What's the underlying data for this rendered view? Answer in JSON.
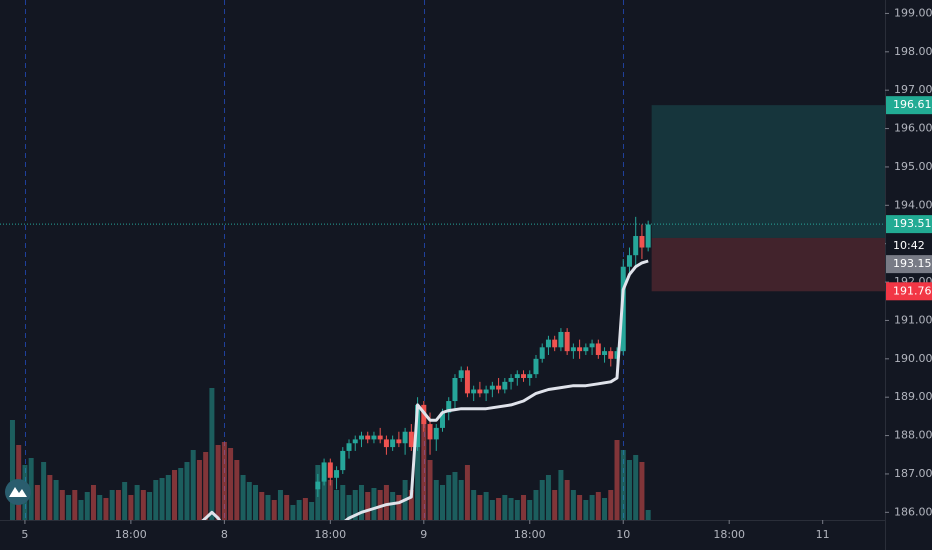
{
  "chart_data": {
    "type": "candlestick",
    "ylim": [
      185.8,
      199.35
    ],
    "yticks": [
      {
        "value": 199,
        "label": "199.00"
      },
      {
        "value": 198,
        "label": "198.00"
      },
      {
        "value": 197,
        "label": "197.00"
      },
      {
        "value": 196,
        "label": "196.00"
      },
      {
        "value": 195,
        "label": "195.00"
      },
      {
        "value": 194,
        "label": "194.00"
      },
      {
        "value": 193,
        "label": "193.00"
      },
      {
        "value": 192,
        "label": "192.00"
      },
      {
        "value": 191,
        "label": "191.00"
      },
      {
        "value": 190,
        "label": "190.00"
      },
      {
        "value": 189,
        "label": "189.00"
      },
      {
        "value": 188,
        "label": "188.00"
      },
      {
        "value": 187,
        "label": "187.00"
      },
      {
        "value": 186,
        "label": "186.00"
      }
    ],
    "xlim": [
      -4,
      138
    ],
    "xticks": [
      {
        "value": 0,
        "label": "5"
      },
      {
        "value": 17,
        "label": "18:00"
      },
      {
        "value": 32,
        "label": "8"
      },
      {
        "value": 49,
        "label": "18:00"
      },
      {
        "value": 64,
        "label": "9"
      },
      {
        "value": 81,
        "label": "18:00"
      },
      {
        "value": 96,
        "label": "10"
      },
      {
        "value": 113,
        "label": "18:00"
      },
      {
        "value": 128,
        "label": "11"
      }
    ],
    "day_lines": [
      0,
      32,
      64,
      96
    ],
    "up_color": "#26a69a",
    "down_color": "#ef5350",
    "candles": {
      "x": [
        47,
        48,
        49,
        50,
        51,
        52,
        53,
        54,
        55,
        56,
        57,
        58,
        59,
        60,
        61,
        62,
        63,
        64,
        65,
        66,
        67,
        68,
        69,
        70,
        71,
        72,
        73,
        74,
        75,
        76,
        77,
        78,
        79,
        80,
        81,
        82,
        83,
        84,
        85,
        86,
        87,
        88,
        89,
        90,
        91,
        92,
        93,
        94,
        95,
        96,
        97,
        98,
        99,
        100
      ],
      "open": [
        186.6,
        186.8,
        187.3,
        186.9,
        187.1,
        187.6,
        187.8,
        187.9,
        188.0,
        187.9,
        188.0,
        187.9,
        187.7,
        187.9,
        187.8,
        188.1,
        187.7,
        188.8,
        188.3,
        187.9,
        188.2,
        188.6,
        188.9,
        189.5,
        189.7,
        189.1,
        189.2,
        189.1,
        189.2,
        189.3,
        189.2,
        189.4,
        189.5,
        189.6,
        189.5,
        189.6,
        190.0,
        190.3,
        190.5,
        190.3,
        190.7,
        190.2,
        190.3,
        190.2,
        190.3,
        190.4,
        190.1,
        190.2,
        190.0,
        190.2,
        192.4,
        192.7,
        193.2,
        192.9
      ],
      "high": [
        187.0,
        187.4,
        187.4,
        187.2,
        187.7,
        187.9,
        188.0,
        188.1,
        188.1,
        188.1,
        188.2,
        188.0,
        188.0,
        188.1,
        188.2,
        188.3,
        189.0,
        188.9,
        188.6,
        188.3,
        188.7,
        189.0,
        189.6,
        189.8,
        189.8,
        189.3,
        189.4,
        189.3,
        189.4,
        189.5,
        189.5,
        189.6,
        189.7,
        189.7,
        189.7,
        190.1,
        190.4,
        190.6,
        190.6,
        190.8,
        190.8,
        190.4,
        190.5,
        190.4,
        190.5,
        190.5,
        190.3,
        190.3,
        190.3,
        192.6,
        192.9,
        193.7,
        193.5,
        193.6
      ],
      "low": [
        186.4,
        186.7,
        186.7,
        186.6,
        187.0,
        187.4,
        187.6,
        187.7,
        187.8,
        187.8,
        187.8,
        187.5,
        187.6,
        187.7,
        187.5,
        187.6,
        187.6,
        188.1,
        187.5,
        187.6,
        188.1,
        188.4,
        188.7,
        189.4,
        189.0,
        188.9,
        189.0,
        188.9,
        189.0,
        189.1,
        189.1,
        189.2,
        189.3,
        189.4,
        189.3,
        189.5,
        189.9,
        190.1,
        190.2,
        190.2,
        190.1,
        190.0,
        190.0,
        190.1,
        190.1,
        190.0,
        189.9,
        189.8,
        189.9,
        190.1,
        192.2,
        192.4,
        192.6,
        192.8
      ],
      "close": [
        186.8,
        187.3,
        186.9,
        187.1,
        187.6,
        187.8,
        187.9,
        188.0,
        187.9,
        188.0,
        187.9,
        187.7,
        187.9,
        187.8,
        188.1,
        187.7,
        188.8,
        188.3,
        187.9,
        188.2,
        188.6,
        188.9,
        189.5,
        189.7,
        189.1,
        189.2,
        189.1,
        189.2,
        189.3,
        189.2,
        189.4,
        189.5,
        189.6,
        189.5,
        189.6,
        190.0,
        190.3,
        190.5,
        190.3,
        190.7,
        190.2,
        190.3,
        190.2,
        190.3,
        190.4,
        190.1,
        190.2,
        190.0,
        190.2,
        192.4,
        192.7,
        193.2,
        192.9,
        193.5
      ]
    },
    "volume": {
      "ylim": [
        0,
        150
      ],
      "x_start": -2,
      "values": [
        100,
        75,
        55,
        62,
        35,
        58,
        45,
        40,
        30,
        25,
        30,
        20,
        28,
        35,
        25,
        22,
        30,
        30,
        38,
        25,
        35,
        30,
        28,
        40,
        42,
        45,
        50,
        52,
        58,
        70,
        60,
        68,
        132,
        75,
        78,
        72,
        60,
        45,
        38,
        35,
        28,
        25,
        20,
        30,
        25,
        15,
        20,
        22,
        18,
        55,
        42,
        40,
        30,
        35,
        25,
        30,
        35,
        28,
        32,
        30,
        35,
        28,
        25,
        40,
        30,
        115,
        100,
        60,
        40,
        35,
        45,
        48,
        40,
        55,
        30,
        25,
        28,
        20,
        22,
        25,
        22,
        20,
        25,
        20,
        30,
        40,
        45,
        30,
        50,
        40,
        30,
        25,
        20,
        25,
        28,
        22,
        30,
        80,
        70,
        60,
        65,
        58,
        10
      ],
      "up": [
        true,
        false,
        true,
        true,
        false,
        true,
        false,
        true,
        false,
        true,
        false,
        true,
        true,
        false,
        true,
        false,
        true,
        false,
        true,
        false,
        true,
        false,
        true,
        true,
        true,
        true,
        false,
        true,
        true,
        true,
        false,
        false,
        true,
        false,
        false,
        false,
        false,
        true,
        true,
        true,
        false,
        true,
        false,
        true,
        false,
        true,
        true,
        false,
        true,
        true,
        true,
        false,
        true,
        true,
        true,
        true,
        true,
        false,
        true,
        false,
        false,
        true,
        false,
        true,
        false,
        true,
        false,
        false,
        true,
        true,
        true,
        true,
        true,
        false,
        true,
        false,
        true,
        true,
        false,
        true,
        true,
        true,
        false,
        true,
        true,
        true,
        true,
        false,
        true,
        false,
        true,
        false,
        true,
        true,
        false,
        true,
        false,
        false,
        true,
        true,
        true,
        false,
        true
      ]
    },
    "vwap": {
      "color": "#e0e3eb",
      "x": [
        28,
        29,
        30,
        31,
        32,
        41,
        50,
        52,
        54,
        56,
        58,
        60,
        62,
        63,
        64,
        65,
        66,
        67,
        68,
        70,
        72,
        74,
        76,
        78,
        80,
        82,
        84,
        86,
        88,
        90,
        92,
        94,
        95,
        96,
        97,
        98,
        99,
        100
      ],
      "values": [
        185.7,
        185.85,
        186.0,
        185.85,
        185.6,
        null,
        185.6,
        185.85,
        186.0,
        186.1,
        186.2,
        186.25,
        186.4,
        188.8,
        188.6,
        188.4,
        188.4,
        188.6,
        188.65,
        188.7,
        188.7,
        188.7,
        188.75,
        188.8,
        188.9,
        189.1,
        189.2,
        189.25,
        189.3,
        189.3,
        189.35,
        189.4,
        189.5,
        191.8,
        192.2,
        192.4,
        192.5,
        192.55
      ]
    },
    "last_price": 193.51,
    "countdown": "10:42",
    "position": {
      "target": 196.61,
      "entry": 193.15,
      "stop": 191.76
    }
  }
}
